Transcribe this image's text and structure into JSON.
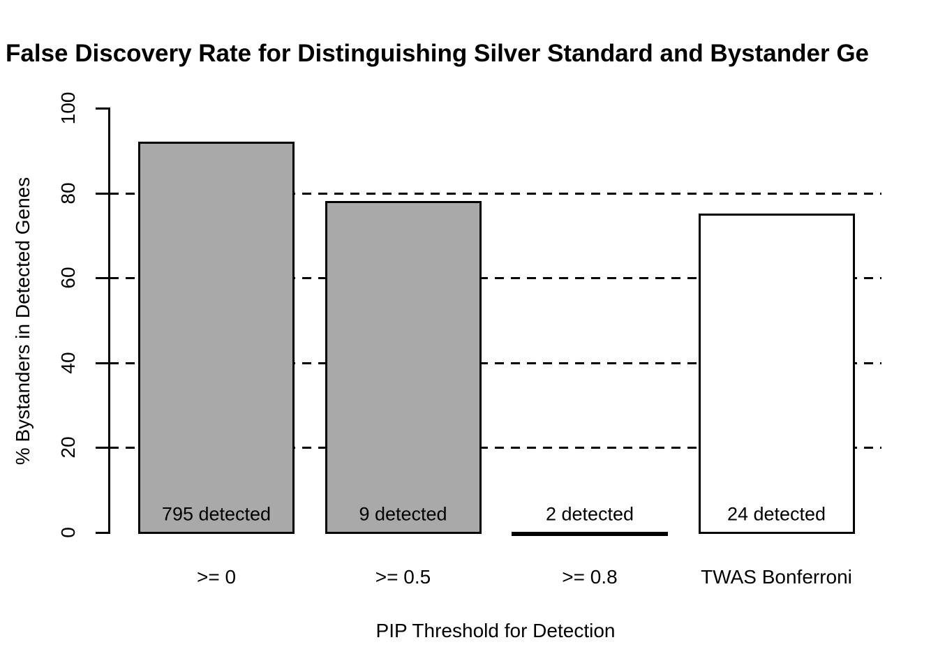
{
  "chart_data": {
    "type": "bar",
    "title": "False Discovery Rate for Distinguishing Silver Standard and Bystander Ge",
    "xlabel": "PIP Threshold for Detection",
    "ylabel": "% Bystanders in Detected Genes",
    "categories": [
      ">= 0",
      ">= 0.5",
      ">= 0.8",
      "TWAS Bonferroni"
    ],
    "values": [
      92,
      78,
      0,
      75
    ],
    "bar_labels": [
      "795 detected",
      "9 detected",
      "2 detected",
      "24 detected"
    ],
    "bar_colors": [
      "#a9a9a9",
      "#a9a9a9",
      "#a9a9a9",
      "#ffffff"
    ],
    "bar_border_color": "#000000",
    "ylim": [
      0,
      100
    ],
    "yticks": [
      0,
      20,
      40,
      60,
      80,
      100
    ],
    "gridlines": [
      20,
      40,
      60,
      80
    ],
    "grid_style": "dashed",
    "legend": null,
    "axis_color": "#000000",
    "background_color": "#ffffff"
  }
}
